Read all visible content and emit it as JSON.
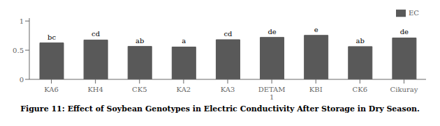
{
  "chart_data": {
    "type": "bar",
    "title": "Figure 11: Effect of Soybean Genotypes in Electric Conductivity After Storage in Dry Season.",
    "categories": [
      "KA6",
      "KH4",
      "CK5",
      "KA2",
      "KA3",
      "DETAM\n1",
      "KBI",
      "CK6",
      "Cikuray"
    ],
    "series": [
      {
        "name": "EC",
        "color": "#595959",
        "values": [
          0.625,
          0.675,
          0.565,
          0.555,
          0.68,
          0.72,
          0.755,
          0.562,
          0.71
        ]
      }
    ],
    "annotations": [
      "bc",
      "cd",
      "ab",
      "a",
      "cd",
      "de",
      "e",
      "ab",
      "de"
    ],
    "ylim": [
      0,
      1.05
    ],
    "yticks": [
      0,
      0.5,
      1
    ],
    "legend": "upper right",
    "grid": false
  }
}
